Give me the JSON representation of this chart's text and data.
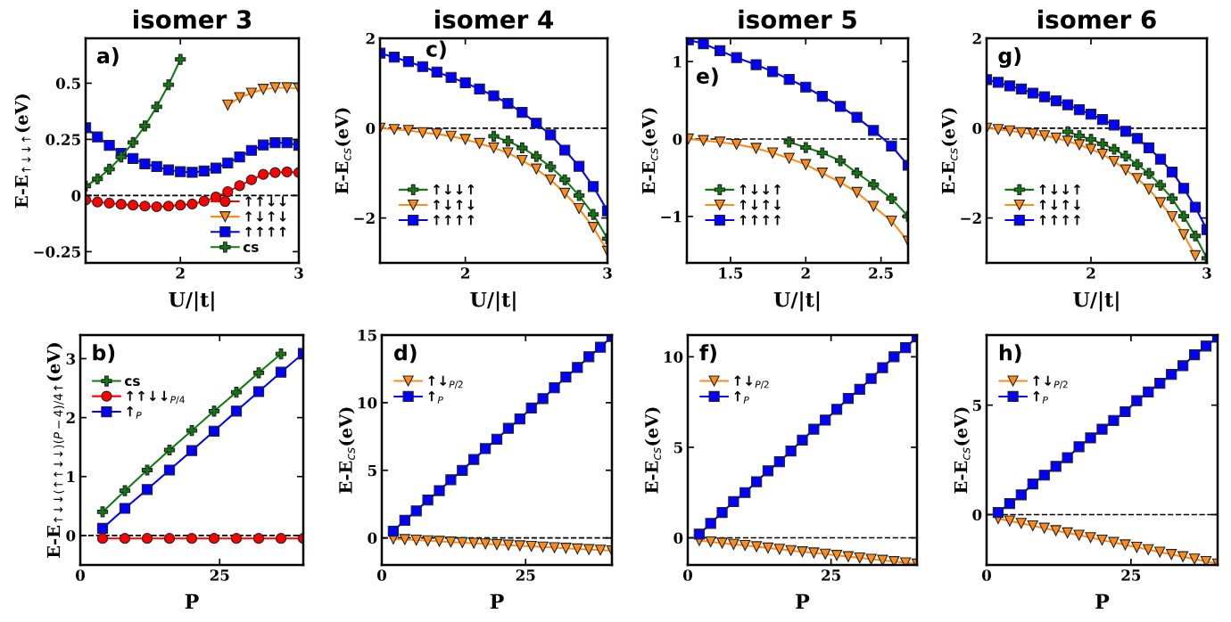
{
  "chart_data": [
    {
      "type": "line",
      "title": "isomer 3",
      "xlabel": "U/|t|",
      "ylabel": "E-E$_{↑↓↓↑}$(eV)",
      "xlim": [
        1.2,
        3
      ],
      "ylim": [
        -0.3,
        0.7
      ],
      "xticks": [
        2,
        3
      ],
      "yticks": [
        {
          "value": -0.25,
          "label": "−0.25"
        },
        0,
        0.25,
        0.5
      ],
      "legend": "bottom right",
      "annotations": [
        "a)"
      ],
      "ref_lines": [
        {
          "axis": "y",
          "value": 0,
          "color": "#000000",
          "line_style": "dashed"
        }
      ],
      "series": [
        {
          "name": "↑↑↓↓",
          "color": "#ff0000",
          "marker": "circle",
          "x": [
            1.2,
            1.3,
            1.4,
            1.5,
            1.6,
            1.7,
            1.8,
            1.9,
            2.0,
            2.1,
            2.2,
            2.3,
            2.4,
            2.5,
            2.6,
            2.7,
            2.8,
            2.9,
            3.0
          ],
          "values": [
            -0.02,
            -0.029,
            -0.034,
            -0.039,
            -0.043,
            -0.047,
            -0.05,
            -0.047,
            -0.043,
            -0.038,
            -0.025,
            -0.007,
            0.017,
            0.044,
            0.07,
            0.094,
            0.102,
            0.105,
            0.102
          ]
        },
        {
          "name": "↑↓↑↓",
          "color": "#ff8c1a",
          "marker": "triangle",
          "x": [
            2.4,
            2.5,
            2.6,
            2.7,
            2.8,
            2.9,
            3.0
          ],
          "values": [
            0.403,
            0.436,
            0.456,
            0.473,
            0.48,
            0.48,
            0.477
          ]
        },
        {
          "name": "↑↑↑↑",
          "color": "#0000ff",
          "marker": "square",
          "x": [
            1.2,
            1.3,
            1.4,
            1.5,
            1.6,
            1.7,
            1.8,
            1.9,
            2.0,
            2.1,
            2.2,
            2.3,
            2.4,
            2.5,
            2.6,
            2.7,
            2.8,
            2.9,
            3.0
          ],
          "values": [
            0.302,
            0.261,
            0.223,
            0.188,
            0.165,
            0.141,
            0.129,
            0.114,
            0.106,
            0.103,
            0.109,
            0.122,
            0.145,
            0.172,
            0.201,
            0.225,
            0.235,
            0.235,
            0.223
          ]
        },
        {
          "name": "cs",
          "color": "#117a11",
          "marker": "cross",
          "x": [
            1.2,
            1.3,
            1.4,
            1.5,
            1.6,
            1.7,
            1.8,
            1.9,
            2.0
          ],
          "values": [
            0.042,
            0.074,
            0.117,
            0.172,
            0.236,
            0.31,
            0.395,
            0.493,
            0.606
          ]
        }
      ]
    },
    {
      "type": "line",
      "title": "isomer 4",
      "xlabel": "U/|t|",
      "ylabel": "E-E$_{cs}$(eV)",
      "xlim": [
        1.4,
        3
      ],
      "ylim": [
        -3,
        2
      ],
      "xticks": [
        2,
        3
      ],
      "yticks": [
        {
          "value": -2,
          "label": "−2"
        },
        0,
        2
      ],
      "legend": "bottom left",
      "annotations": [
        "c)"
      ],
      "ref_lines": [
        {
          "axis": "y",
          "value": 0,
          "color": "#000000",
          "line_style": "dashed"
        }
      ],
      "series": [
        {
          "name": "↑↓↓↑",
          "color": "#117a11",
          "marker": "cross",
          "x": [
            2.2,
            2.3,
            2.4,
            2.5,
            2.6,
            2.7,
            2.8,
            2.9,
            3.0
          ],
          "values": [
            -0.18,
            -0.29,
            -0.44,
            -0.63,
            -0.86,
            -1.15,
            -1.5,
            -1.92,
            -2.46
          ]
        },
        {
          "name": "↑↓↑↓",
          "color": "#ff8c1a",
          "marker": "triangle",
          "x": [
            1.4,
            1.5,
            1.6,
            1.7,
            1.8,
            1.9,
            2.0,
            2.1,
            2.2,
            2.3,
            2.4,
            2.5,
            2.6,
            2.7,
            2.8,
            2.9,
            3.0
          ],
          "values": [
            0,
            -0.03,
            -0.05,
            -0.1,
            -0.13,
            -0.18,
            -0.25,
            -0.34,
            -0.44,
            -0.55,
            -0.72,
            -0.91,
            -1.15,
            -1.45,
            -1.79,
            -2.21,
            -2.74
          ]
        },
        {
          "name": "↑↑↑↑",
          "color": "#0000ff",
          "marker": "square",
          "x": [
            1.4,
            1.5,
            1.6,
            1.7,
            1.8,
            1.9,
            2.0,
            2.1,
            2.2,
            2.3,
            2.4,
            2.5,
            2.6,
            2.7,
            2.8,
            2.9,
            3.0
          ],
          "values": [
            1.67,
            1.58,
            1.48,
            1.37,
            1.25,
            1.13,
            1.01,
            0.87,
            0.72,
            0.55,
            0.35,
            0.11,
            -0.15,
            -0.49,
            -0.85,
            -1.3,
            -1.84
          ]
        }
      ]
    },
    {
      "type": "line",
      "title": "isomer 5",
      "xlabel": "U/|t|",
      "ylabel": "E-E$_{cs}$(eV)",
      "xlim": [
        1.21,
        2.68
      ],
      "ylim": [
        -1.6,
        1.3
      ],
      "xticks": [
        1.5,
        2,
        2.5
      ],
      "yticks": [
        {
          "value": -1,
          "label": "−1"
        },
        0,
        1
      ],
      "legend": "bottom left",
      "annotations": [
        "e)"
      ],
      "ref_lines": [
        {
          "axis": "y",
          "value": 0,
          "color": "#000000",
          "line_style": "dashed"
        }
      ],
      "series": [
        {
          "name": "↑↓↓↑",
          "color": "#117a11",
          "marker": "cross",
          "x": [
            1.89,
            2.0,
            2.11,
            2.23,
            2.34,
            2.45,
            2.57,
            2.68
          ],
          "values": [
            -0.04,
            -0.11,
            -0.18,
            -0.28,
            -0.44,
            -0.59,
            -0.77,
            -1.0
          ]
        },
        {
          "name": "↑↓↑↓",
          "color": "#ff8c1a",
          "marker": "triangle",
          "x": [
            1.22,
            1.32,
            1.43,
            1.54,
            1.67,
            1.78,
            1.89,
            2.0,
            2.11,
            2.23,
            2.34,
            2.45,
            2.57,
            2.68
          ],
          "values": [
            0,
            -0.02,
            -0.04,
            -0.07,
            -0.12,
            -0.18,
            -0.25,
            -0.33,
            -0.44,
            -0.56,
            -0.69,
            -0.87,
            -1.06,
            -1.32
          ]
        },
        {
          "name": "↑↑↑↑",
          "color": "#0000ff",
          "marker": "square",
          "x": [
            1.22,
            1.32,
            1.43,
            1.54,
            1.67,
            1.78,
            1.89,
            2.0,
            2.11,
            2.23,
            2.34,
            2.45,
            2.57,
            2.68
          ],
          "values": [
            1.28,
            1.23,
            1.14,
            1.05,
            0.96,
            0.87,
            0.77,
            0.67,
            0.55,
            0.42,
            0.28,
            0.11,
            -0.09,
            -0.34
          ]
        }
      ]
    },
    {
      "type": "line",
      "title": "isomer 6",
      "xlabel": "U/|t|",
      "ylabel": "E-E$_{cs}$(eV)",
      "xlim": [
        1.1,
        3
      ],
      "ylim": [
        -3,
        2
      ],
      "xticks": [
        2,
        3
      ],
      "yticks": [
        {
          "value": -2,
          "label": "−2"
        },
        0,
        2
      ],
      "legend": "bottom left",
      "annotations": [
        "g)"
      ],
      "ref_lines": [
        {
          "axis": "y",
          "value": 0,
          "color": "#000000",
          "line_style": "dashed"
        }
      ],
      "series": [
        {
          "name": "↑↓↓↑",
          "color": "#117a11",
          "marker": "cross",
          "x": [
            1.8,
            1.9,
            2.0,
            2.1,
            2.2,
            2.3,
            2.4,
            2.5,
            2.6,
            2.7,
            2.8,
            2.9,
            3.0
          ],
          "values": [
            -0.08,
            -0.17,
            -0.25,
            -0.35,
            -0.47,
            -0.62,
            -0.81,
            -1.01,
            -1.27,
            -1.57,
            -1.96,
            -2.4,
            -2.9
          ]
        },
        {
          "name": "↑↓↑↓",
          "color": "#ff8c1a",
          "marker": "triangle",
          "x": [
            1.1,
            1.2,
            1.3,
            1.4,
            1.5,
            1.6,
            1.7,
            1.8,
            1.9,
            2.0,
            2.1,
            2.2,
            2.3,
            2.4,
            2.5,
            2.6,
            2.7,
            2.8,
            2.9
          ],
          "values": [
            0,
            -0.03,
            -0.06,
            -0.1,
            -0.13,
            -0.17,
            -0.22,
            -0.29,
            -0.37,
            -0.47,
            -0.58,
            -0.74,
            -0.93,
            -1.12,
            -1.36,
            -1.66,
            -1.97,
            -2.37,
            -2.84
          ]
        },
        {
          "name": "↑↑↑↑",
          "color": "#0000ff",
          "marker": "square",
          "x": [
            1.1,
            1.2,
            1.3,
            1.4,
            1.5,
            1.6,
            1.7,
            1.8,
            1.9,
            2.0,
            2.1,
            2.2,
            2.3,
            2.4,
            2.5,
            2.6,
            2.7,
            2.8,
            2.9,
            3.0
          ],
          "values": [
            1.08,
            1.02,
            0.94,
            0.87,
            0.78,
            0.7,
            0.61,
            0.52,
            0.41,
            0.31,
            0.19,
            0.07,
            -0.07,
            -0.23,
            -0.44,
            -0.69,
            -0.98,
            -1.34,
            -1.76,
            -2.26
          ]
        }
      ]
    },
    {
      "type": "line",
      "xlabel": "P",
      "ylabel": "E-E$_{↑↓↓(↑↑↓↓)(P−4)/4↑}$(eV)",
      "xlim": [
        0,
        40
      ],
      "ylim": [
        -0.5,
        3.4
      ],
      "xticks": [
        0,
        25
      ],
      "yticks": [
        0,
        1,
        2,
        3
      ],
      "legend": "top left",
      "annotations": [
        "b)"
      ],
      "ref_lines": [
        {
          "axis": "y",
          "value": 0,
          "color": "#000000",
          "line_style": "dashed"
        }
      ],
      "series": [
        {
          "name": "cs",
          "color": "#117a11",
          "marker": "cross",
          "x": [
            4,
            8,
            12,
            16,
            20,
            24,
            28,
            32,
            36
          ],
          "values": [
            0.4,
            0.76,
            1.11,
            1.45,
            1.78,
            2.11,
            2.43,
            2.76,
            3.08
          ]
        },
        {
          "name": "↑↑↓↓$_{P/4}$",
          "color": "#ff0000",
          "marker": "circle",
          "x": [
            4,
            8,
            12,
            16,
            20,
            24,
            28,
            32,
            36,
            40
          ],
          "values": [
            -0.05,
            -0.05,
            -0.05,
            -0.05,
            -0.05,
            -0.05,
            -0.05,
            -0.05,
            -0.05,
            -0.05
          ]
        },
        {
          "name": "↑$_{P}$",
          "color": "#0000ff",
          "marker": "square",
          "x": [
            4,
            8,
            12,
            16,
            20,
            24,
            28,
            32,
            36,
            40
          ],
          "values": [
            0.12,
            0.46,
            0.78,
            1.11,
            1.44,
            1.77,
            2.11,
            2.44,
            2.77,
            3.09
          ]
        }
      ]
    },
    {
      "type": "line",
      "xlabel": "P",
      "ylabel": "E-E$_{cs}$(eV)",
      "xlim": [
        0,
        40
      ],
      "ylim": [
        -2,
        15
      ],
      "xticks": [
        0,
        25
      ],
      "yticks": [
        0,
        5,
        10,
        15
      ],
      "legend": "top left",
      "annotations": [
        "d)"
      ],
      "ref_lines": [
        {
          "axis": "y",
          "value": 0,
          "color": "#000000",
          "line_style": "dashed"
        }
      ],
      "x": [
        2,
        4,
        6,
        8,
        10,
        12,
        14,
        16,
        18,
        20,
        22,
        24,
        26,
        28,
        30,
        32,
        34,
        36,
        38,
        40
      ],
      "series": [
        {
          "name": "↑↓$_{P/2}$",
          "color": "#ff8c1a",
          "marker": "triangle",
          "values": [
            -0.07,
            -0.12,
            -0.16,
            -0.21,
            -0.25,
            -0.3,
            -0.35,
            -0.39,
            -0.44,
            -0.49,
            -0.53,
            -0.58,
            -0.62,
            -0.67,
            -0.72,
            -0.76,
            -0.81,
            -0.86,
            -0.9,
            -0.95
          ]
        },
        {
          "name": "↑$_{P}$",
          "color": "#0000ff",
          "marker": "square",
          "values": [
            0.5,
            1.3,
            2.0,
            2.8,
            3.5,
            4.3,
            5.0,
            5.8,
            6.6,
            7.3,
            8.1,
            8.8,
            9.6,
            10.3,
            11.1,
            11.9,
            12.6,
            13.4,
            14.1,
            14.9
          ]
        }
      ]
    },
    {
      "type": "line",
      "xlabel": "P",
      "ylabel": "E-E$_{cs}$(eV)",
      "xlim": [
        0,
        40
      ],
      "ylim": [
        -1.5,
        11.2
      ],
      "xticks": [
        0,
        25
      ],
      "yticks": [
        0,
        5,
        10
      ],
      "legend": "top left",
      "annotations": [
        "f)"
      ],
      "ref_lines": [
        {
          "axis": "y",
          "value": 0,
          "color": "#000000",
          "line_style": "dashed"
        }
      ],
      "x": [
        2,
        4,
        6,
        8,
        10,
        12,
        14,
        16,
        18,
        20,
        22,
        24,
        26,
        28,
        30,
        32,
        34,
        36,
        38,
        40
      ],
      "series": [
        {
          "name": "↑↓$_{P/2}$",
          "color": "#ff8c1a",
          "marker": "triangle",
          "values": [
            -0.15,
            -0.22,
            -0.29,
            -0.36,
            -0.42,
            -0.49,
            -0.56,
            -0.63,
            -0.7,
            -0.77,
            -0.83,
            -0.9,
            -0.97,
            -1.04,
            -1.11,
            -1.18,
            -1.24,
            -1.31,
            -1.38,
            -1.45
          ]
        },
        {
          "name": "↑$_{P}$",
          "color": "#0000ff",
          "marker": "square",
          "values": [
            0.2,
            0.8,
            1.4,
            2.0,
            2.5,
            3.1,
            3.7,
            4.2,
            4.8,
            5.4,
            6.0,
            6.5,
            7.1,
            7.7,
            8.2,
            8.8,
            9.4,
            10.0,
            10.5,
            11.1
          ]
        }
      ]
    },
    {
      "type": "line",
      "xlabel": "P",
      "ylabel": "E-E$_{cs}$(eV)",
      "xlim": [
        0,
        40
      ],
      "ylim": [
        -2.3,
        8.2
      ],
      "xticks": [
        0,
        25
      ],
      "yticks": [
        0,
        5
      ],
      "legend": "top left",
      "annotations": [
        "h)"
      ],
      "ref_lines": [
        {
          "axis": "y",
          "value": 0,
          "color": "#000000",
          "line_style": "dashed"
        }
      ],
      "x": [
        2,
        4,
        6,
        8,
        10,
        12,
        14,
        16,
        18,
        20,
        22,
        24,
        26,
        28,
        30,
        32,
        34,
        36,
        38,
        40
      ],
      "series": [
        {
          "name": "↑↓$_{P/2}$",
          "color": "#ff8c1a",
          "marker": "triangle",
          "values": [
            -0.18,
            -0.29,
            -0.4,
            -0.51,
            -0.62,
            -0.73,
            -0.83,
            -0.94,
            -1.05,
            -1.16,
            -1.27,
            -1.38,
            -1.49,
            -1.6,
            -1.71,
            -1.82,
            -1.92,
            -2.03,
            -2.14,
            -2.25
          ]
        },
        {
          "name": "↑$_{P}$",
          "color": "#0000ff",
          "marker": "square",
          "values": [
            0.1,
            0.5,
            0.9,
            1.4,
            1.8,
            2.2,
            2.6,
            3.1,
            3.5,
            3.9,
            4.3,
            4.7,
            5.2,
            5.6,
            6.0,
            6.4,
            6.8,
            7.3,
            7.7,
            8.1
          ]
        }
      ]
    }
  ]
}
